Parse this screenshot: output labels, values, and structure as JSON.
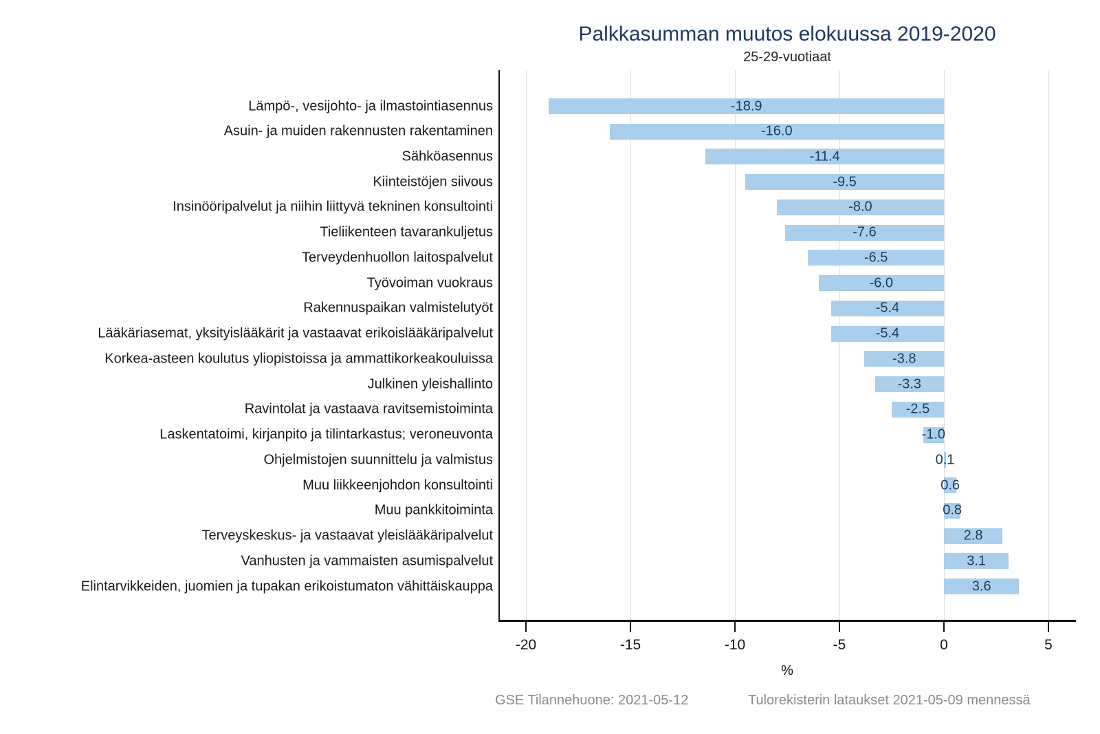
{
  "title": "Palkkasumman muutos elokuussa 2019-2020",
  "subtitle": "25-29-vuotiaat",
  "footer": {
    "left": "GSE Tilannehuone: 2021-05-12",
    "right": "Tulorekisterin lataukset 2021-05-09 mennessä"
  },
  "colors": {
    "bar": "#A9CFEC",
    "title": "#1F3864",
    "value_label": "#1F3B55",
    "category_label": "#1A1A1A",
    "axis": "#141414",
    "gridline": "#E0E0E0",
    "footer": "#8C8C8C",
    "background": "#FFFFFF"
  },
  "chart_data": {
    "type": "bar",
    "orientation": "horizontal",
    "title": "Palkkasumman muutos elokuussa 2019-2020",
    "subtitle": "25-29-vuotiaat",
    "xlabel": "%",
    "ylabel": "",
    "categories": [
      "Lämpö-, vesijohto- ja ilmastointiasennus",
      "Asuin- ja muiden rakennusten rakentaminen",
      "Sähköasennus",
      "Kiinteistöjen siivous",
      "Insinööripalvelut ja niihin liittyvä tekninen konsultointi",
      "Tieliikenteen tavarankuljetus",
      "Terveydenhuollon laitospalvelut",
      "Työvoiman vuokraus",
      "Rakennuspaikan valmistelutyöt",
      "Lääkäriasemat, yksityislääkärit ja vastaavat erikoislääkäripalvelut",
      "Korkea-asteen koulutus yliopistoissa ja ammattikorkeakouluissa",
      "Julkinen yleishallinto",
      "Ravintolat ja vastaava ravitsemistoiminta",
      "Laskentatoimi, kirjanpito ja tilintarkastus; veroneuvonta",
      "Ohjelmistojen suunnittelu ja valmistus",
      "Muu liikkeenjohdon konsultointi",
      "Muu pankkitoiminta",
      "Terveyskeskus- ja vastaavat yleislääkäripalvelut",
      "Vanhusten ja vammaisten asumispalvelut",
      "Elintarvikkeiden, juomien ja tupakan erikoistumaton vähittäiskauppa"
    ],
    "values": [
      -18.9,
      -16.0,
      -11.4,
      -9.5,
      -8.0,
      -7.6,
      -6.5,
      -6.0,
      -5.4,
      -5.4,
      -3.8,
      -3.3,
      -2.5,
      -1.0,
      0.1,
      0.6,
      0.8,
      2.8,
      3.1,
      3.6
    ],
    "value_labels": [
      "-18.9",
      "-16.0",
      "-11.4",
      "-9.5",
      "-8.0",
      "-7.6",
      "-6.5",
      "-6.0",
      "-5.4",
      "-5.4",
      "-3.8",
      "-3.3",
      "-2.5",
      "-1.0",
      "0.1",
      "0.6",
      "0.8",
      "2.8",
      "3.1",
      "3.6"
    ],
    "x_ticks": [
      -20,
      -15,
      -10,
      -5,
      0,
      5
    ],
    "xlim": [
      -21.25,
      6.25
    ],
    "grid": true,
    "legend": false,
    "value_labels_shown": true
  }
}
